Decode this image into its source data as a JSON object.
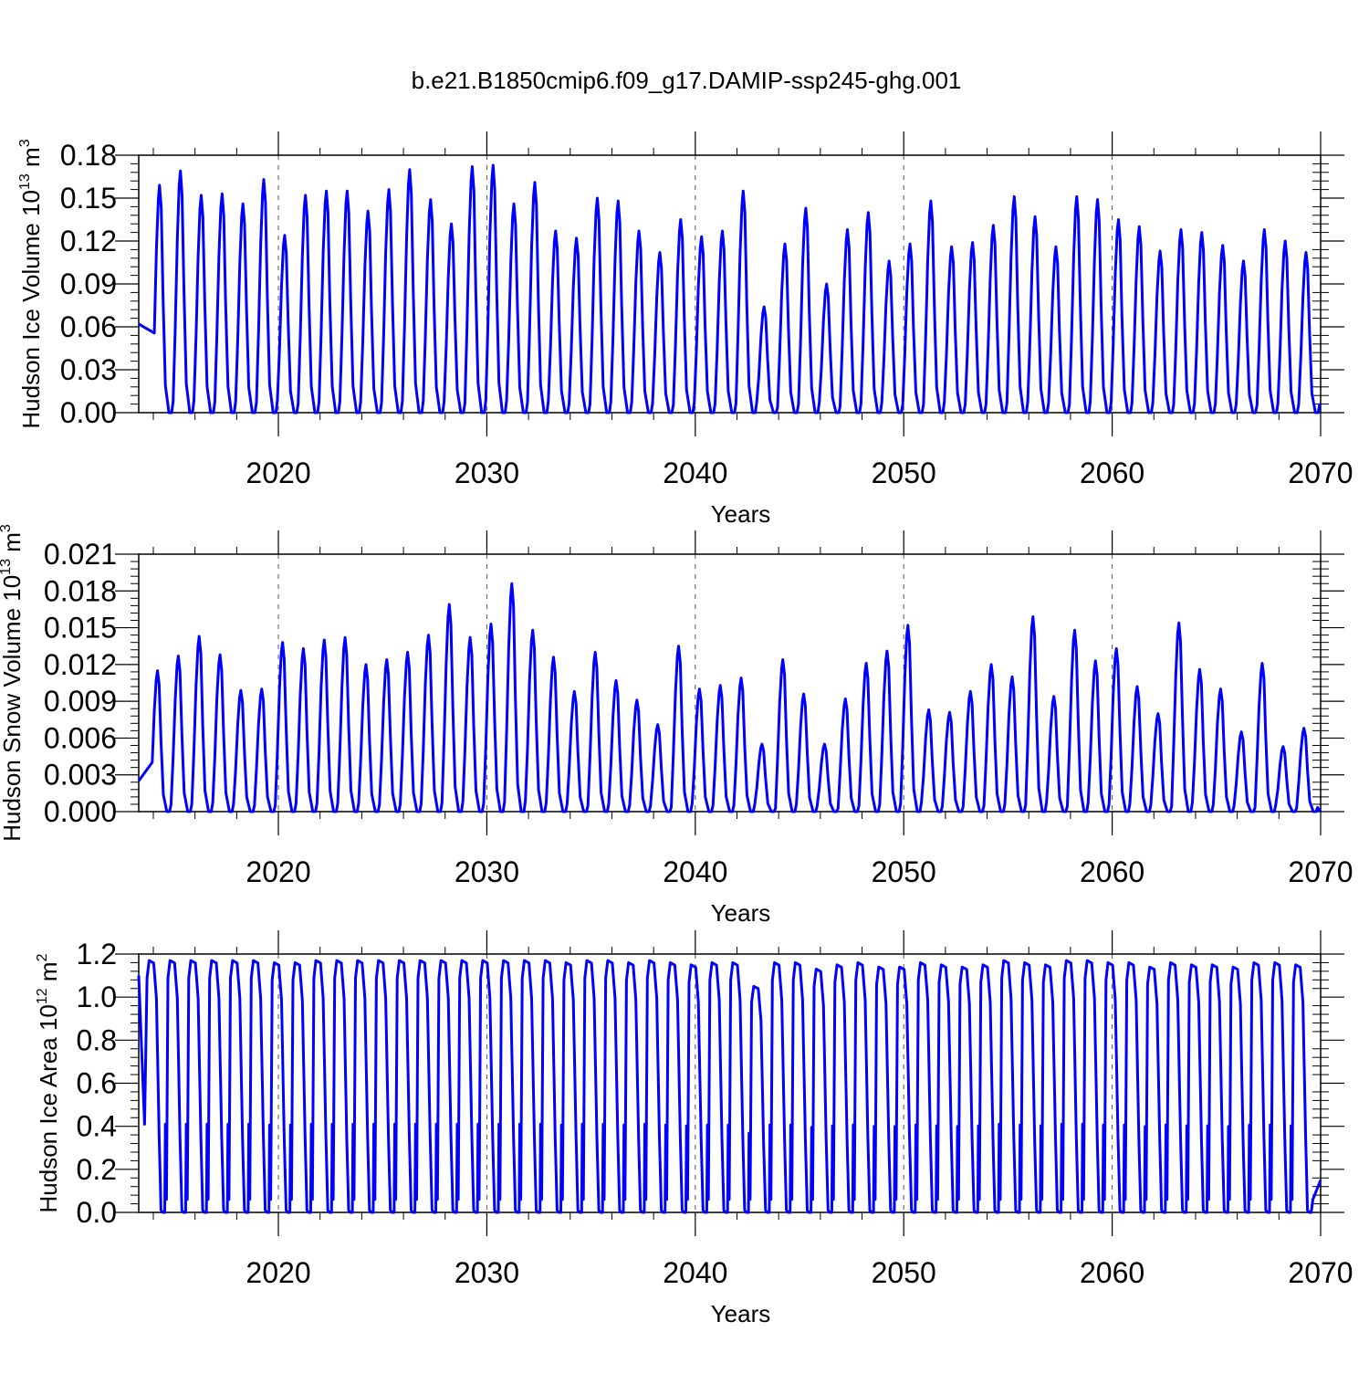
{
  "title": "b.e21.B1850cmip6.f09_g17.DAMIP-ssp245-ghg.001",
  "colors": {
    "line": "#0000ff",
    "axis": "#000000",
    "grid": "#555555"
  },
  "chart_data": [
    {
      "type": "line",
      "name": "ice-volume",
      "ylabel_main": "Hudson Ice Volume 10",
      "ylabel_sup": "13",
      "ylabel_unit": " m",
      "ylabel_unit_sup": "3",
      "xlabel": "Years",
      "xlim": [
        2013.3,
        2070.0
      ],
      "ylim": [
        0.0,
        0.18
      ],
      "xticks": [
        2020,
        2030,
        2040,
        2050,
        2060,
        2070
      ],
      "yticks": [
        0.0,
        0.03,
        0.06,
        0.09,
        0.12,
        0.15,
        0.18
      ],
      "ytick_labels": [
        "0.00",
        "0.03",
        "0.06",
        "0.09",
        "0.12",
        "0.15",
        "0.18"
      ],
      "series": [
        {
          "name": "Ice volume",
          "start": 2013.3,
          "peak_times": [
            2014.3,
            2015.3,
            2016.3,
            2017.3,
            2018.3,
            2019.3,
            2020.3,
            2021.3,
            2022.3,
            2023.3,
            2024.3,
            2025.3,
            2026.3,
            2027.3,
            2028.3,
            2029.3,
            2030.3,
            2031.3,
            2032.3,
            2033.3,
            2034.3,
            2035.3,
            2036.3,
            2037.3,
            2038.3,
            2039.3,
            2040.3,
            2041.3,
            2042.3,
            2043.3,
            2044.3,
            2045.3,
            2046.3,
            2047.3,
            2048.3,
            2049.3,
            2050.3,
            2051.3,
            2052.3,
            2053.3,
            2054.3,
            2055.3,
            2056.3,
            2057.3,
            2058.3,
            2059.3,
            2060.3,
            2061.3,
            2062.3,
            2063.3,
            2064.3,
            2065.3,
            2066.3,
            2067.3,
            2068.3,
            2069.3
          ],
          "peaks": [
            0.159,
            0.169,
            0.152,
            0.153,
            0.146,
            0.163,
            0.124,
            0.152,
            0.155,
            0.155,
            0.141,
            0.156,
            0.17,
            0.149,
            0.132,
            0.172,
            0.173,
            0.146,
            0.161,
            0.127,
            0.122,
            0.15,
            0.148,
            0.127,
            0.112,
            0.135,
            0.123,
            0.127,
            0.155,
            0.074,
            0.118,
            0.143,
            0.09,
            0.128,
            0.14,
            0.106,
            0.118,
            0.148,
            0.116,
            0.119,
            0.131,
            0.151,
            0.137,
            0.116,
            0.151,
            0.149,
            0.135,
            0.13,
            0.113,
            0.128,
            0.126,
            0.117,
            0.106,
            0.128,
            0.12,
            0.112
          ],
          "start_value": 0.062,
          "end_value": 0.005
        }
      ]
    },
    {
      "type": "line",
      "name": "snow-volume",
      "ylabel_main": "Hudson Snow Volume 10",
      "ylabel_sup": "13",
      "ylabel_unit": " m",
      "ylabel_unit_sup": "3",
      "xlabel": "Years",
      "xlim": [
        2013.3,
        2070.0
      ],
      "ylim": [
        0.0,
        0.021
      ],
      "xticks": [
        2020,
        2030,
        2040,
        2050,
        2060,
        2070
      ],
      "yticks": [
        0.0,
        0.003,
        0.006,
        0.009,
        0.012,
        0.015,
        0.018,
        0.021
      ],
      "ytick_labels": [
        "0.000",
        "0.003",
        "0.006",
        "0.009",
        "0.012",
        "0.015",
        "0.018",
        "0.021"
      ],
      "series": [
        {
          "name": "Snow volume",
          "start": 2013.3,
          "peak_times": [
            2014.2,
            2015.2,
            2016.2,
            2017.2,
            2018.2,
            2019.2,
            2020.2,
            2021.2,
            2022.2,
            2023.2,
            2024.2,
            2025.2,
            2026.2,
            2027.2,
            2028.2,
            2029.2,
            2030.2,
            2031.2,
            2032.2,
            2033.2,
            2034.2,
            2035.2,
            2036.2,
            2037.2,
            2038.2,
            2039.2,
            2040.2,
            2041.2,
            2042.2,
            2043.2,
            2044.2,
            2045.2,
            2046.2,
            2047.2,
            2048.2,
            2049.2,
            2050.2,
            2051.2,
            2052.2,
            2053.2,
            2054.2,
            2055.2,
            2056.2,
            2057.2,
            2058.2,
            2059.2,
            2060.2,
            2061.2,
            2062.2,
            2063.2,
            2064.2,
            2065.2,
            2066.2,
            2067.2,
            2068.2,
            2069.2
          ],
          "peaks": [
            0.0115,
            0.0127,
            0.0143,
            0.0128,
            0.0099,
            0.01,
            0.0138,
            0.0133,
            0.014,
            0.0142,
            0.012,
            0.0124,
            0.013,
            0.0144,
            0.0169,
            0.0142,
            0.0153,
            0.0186,
            0.0148,
            0.0126,
            0.0098,
            0.013,
            0.0107,
            0.0091,
            0.0071,
            0.0135,
            0.01,
            0.0103,
            0.0109,
            0.0055,
            0.0124,
            0.0096,
            0.0055,
            0.0092,
            0.0121,
            0.0131,
            0.0152,
            0.0083,
            0.0081,
            0.0098,
            0.012,
            0.011,
            0.0159,
            0.0094,
            0.0148,
            0.0123,
            0.0133,
            0.0102,
            0.008,
            0.0154,
            0.0116,
            0.01,
            0.0065,
            0.0121,
            0.0053,
            0.0068
          ],
          "start_value": 0.0025,
          "end_value": 0.0
        }
      ]
    },
    {
      "type": "line",
      "name": "ice-area",
      "ylabel_main": "Hudson Ice Area 10",
      "ylabel_sup": "12",
      "ylabel_unit": " m",
      "ylabel_unit_sup": "2",
      "xlabel": "Years",
      "xlim": [
        2013.3,
        2070.0
      ],
      "ylim": [
        0.0,
        1.2
      ],
      "xticks": [
        2020,
        2030,
        2040,
        2050,
        2060,
        2070
      ],
      "yticks": [
        0.0,
        0.2,
        0.4,
        0.6,
        0.8,
        1.0,
        1.2
      ],
      "ytick_labels": [
        "0.0",
        "0.2",
        "0.4",
        "0.6",
        "0.8",
        "1.0",
        "1.2"
      ],
      "series": [
        {
          "name": "Ice area",
          "start": 2013.3,
          "plateau": true,
          "peak_times": [
            2013.9,
            2014.9,
            2015.9,
            2016.9,
            2017.9,
            2018.9,
            2019.9,
            2020.9,
            2021.9,
            2022.9,
            2023.9,
            2024.9,
            2025.9,
            2026.9,
            2027.9,
            2028.9,
            2029.9,
            2030.9,
            2031.9,
            2032.9,
            2033.9,
            2034.9,
            2035.9,
            2036.9,
            2037.9,
            2038.9,
            2039.9,
            2040.9,
            2041.9,
            2042.9,
            2043.9,
            2044.9,
            2045.9,
            2046.9,
            2047.9,
            2048.9,
            2049.9,
            2050.9,
            2051.9,
            2052.9,
            2053.9,
            2054.9,
            2055.9,
            2056.9,
            2057.9,
            2058.9,
            2059.9,
            2060.9,
            2061.9,
            2062.9,
            2063.9,
            2064.9,
            2065.9,
            2066.9,
            2067.9,
            2068.9
          ],
          "peaks": [
            1.17,
            1.17,
            1.17,
            1.17,
            1.17,
            1.17,
            1.16,
            1.16,
            1.17,
            1.17,
            1.17,
            1.17,
            1.17,
            1.17,
            1.17,
            1.17,
            1.17,
            1.17,
            1.17,
            1.17,
            1.16,
            1.17,
            1.17,
            1.16,
            1.17,
            1.16,
            1.15,
            1.16,
            1.16,
            1.05,
            1.16,
            1.16,
            1.13,
            1.15,
            1.16,
            1.14,
            1.14,
            1.16,
            1.15,
            1.14,
            1.15,
            1.17,
            1.16,
            1.15,
            1.17,
            1.17,
            1.16,
            1.16,
            1.14,
            1.16,
            1.15,
            1.15,
            1.14,
            1.16,
            1.16,
            1.15
          ],
          "start_value": 1.1,
          "end_value": 0.15
        }
      ]
    }
  ]
}
